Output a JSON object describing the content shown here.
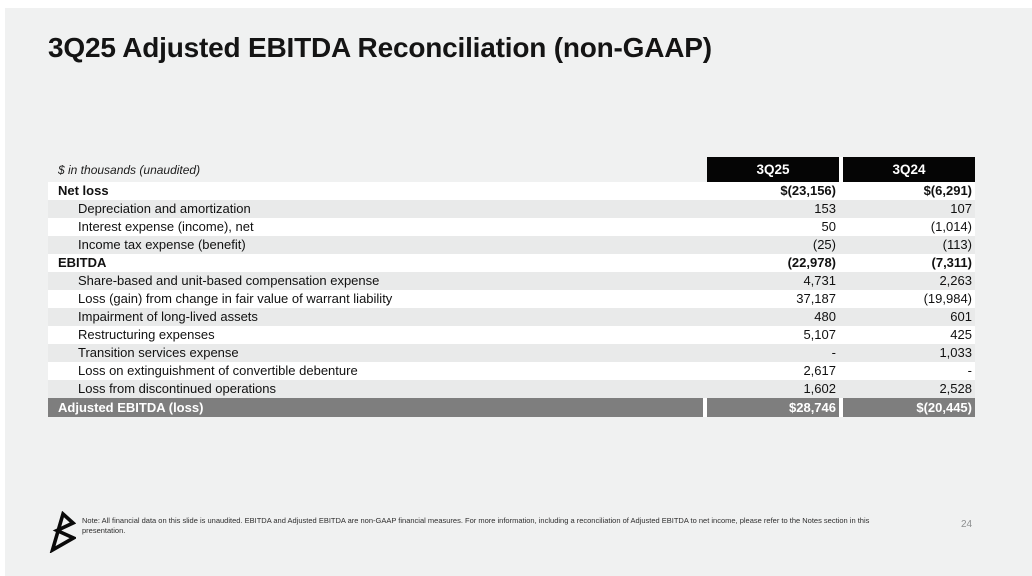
{
  "slide": {
    "title": "3Q25 Adjusted EBITDA Reconciliation (non-GAAP)",
    "page_number": "24",
    "footnote": "Note: All financial data on this slide is unaudited. EBITDA and Adjusted EBITDA are non-GAAP financial measures. For more information, including a reconciliation of Adjusted EBITDA to net income,  please refer to the Notes section in this presentation.",
    "logo": "stylized-b-logo"
  },
  "table": {
    "caption": "$ in thousands (unaudited)",
    "columns": [
      "3Q25",
      "3Q24"
    ],
    "rows": [
      {
        "label": "Net loss",
        "q25": "$(23,156)",
        "q24": "$(6,291)",
        "style": "bold"
      },
      {
        "label": "Depreciation and amortization",
        "q25": "153",
        "q24": "107",
        "style": "indent"
      },
      {
        "label": "Interest expense (income), net",
        "q25": "50",
        "q24": "(1,014)",
        "style": "indent"
      },
      {
        "label": "Income tax expense (benefit)",
        "q25": "(25)",
        "q24": "(113)",
        "style": "indent"
      },
      {
        "label": "EBITDA",
        "q25": "(22,978)",
        "q24": "(7,311)",
        "style": "bold"
      },
      {
        "label": "Share-based and unit-based compensation expense",
        "q25": "4,731",
        "q24": "2,263",
        "style": "indent"
      },
      {
        "label": "Loss (gain) from change in fair value of warrant liability",
        "q25": "37,187",
        "q24": "(19,984)",
        "style": "indent"
      },
      {
        "label": "Impairment of long-lived assets",
        "q25": "480",
        "q24": "601",
        "style": "indent"
      },
      {
        "label": "Restructuring expenses",
        "q25": "5,107",
        "q24": "425",
        "style": "indent"
      },
      {
        "label": "Transition services expense",
        "q25": "-",
        "q24": "1,033",
        "style": "indent"
      },
      {
        "label": "Loss on extinguishment of convertible debenture",
        "q25": "2,617",
        "q24": "-",
        "style": "indent"
      },
      {
        "label": "Loss from discontinued operations",
        "q25": "1,602",
        "q24": "2,528",
        "style": "indent"
      },
      {
        "label": "Adjusted EBITDA (loss)",
        "q25": "$28,746",
        "q24": "$(20,445)",
        "style": "total"
      }
    ]
  },
  "colors": {
    "slide_bg": "#f0f1f1",
    "row_alt": "#e9eaea",
    "header_bg": "#050505",
    "total_row_bg": "#7e7e7e",
    "title_text": "#141414",
    "page_number_text": "#8d8f90"
  }
}
